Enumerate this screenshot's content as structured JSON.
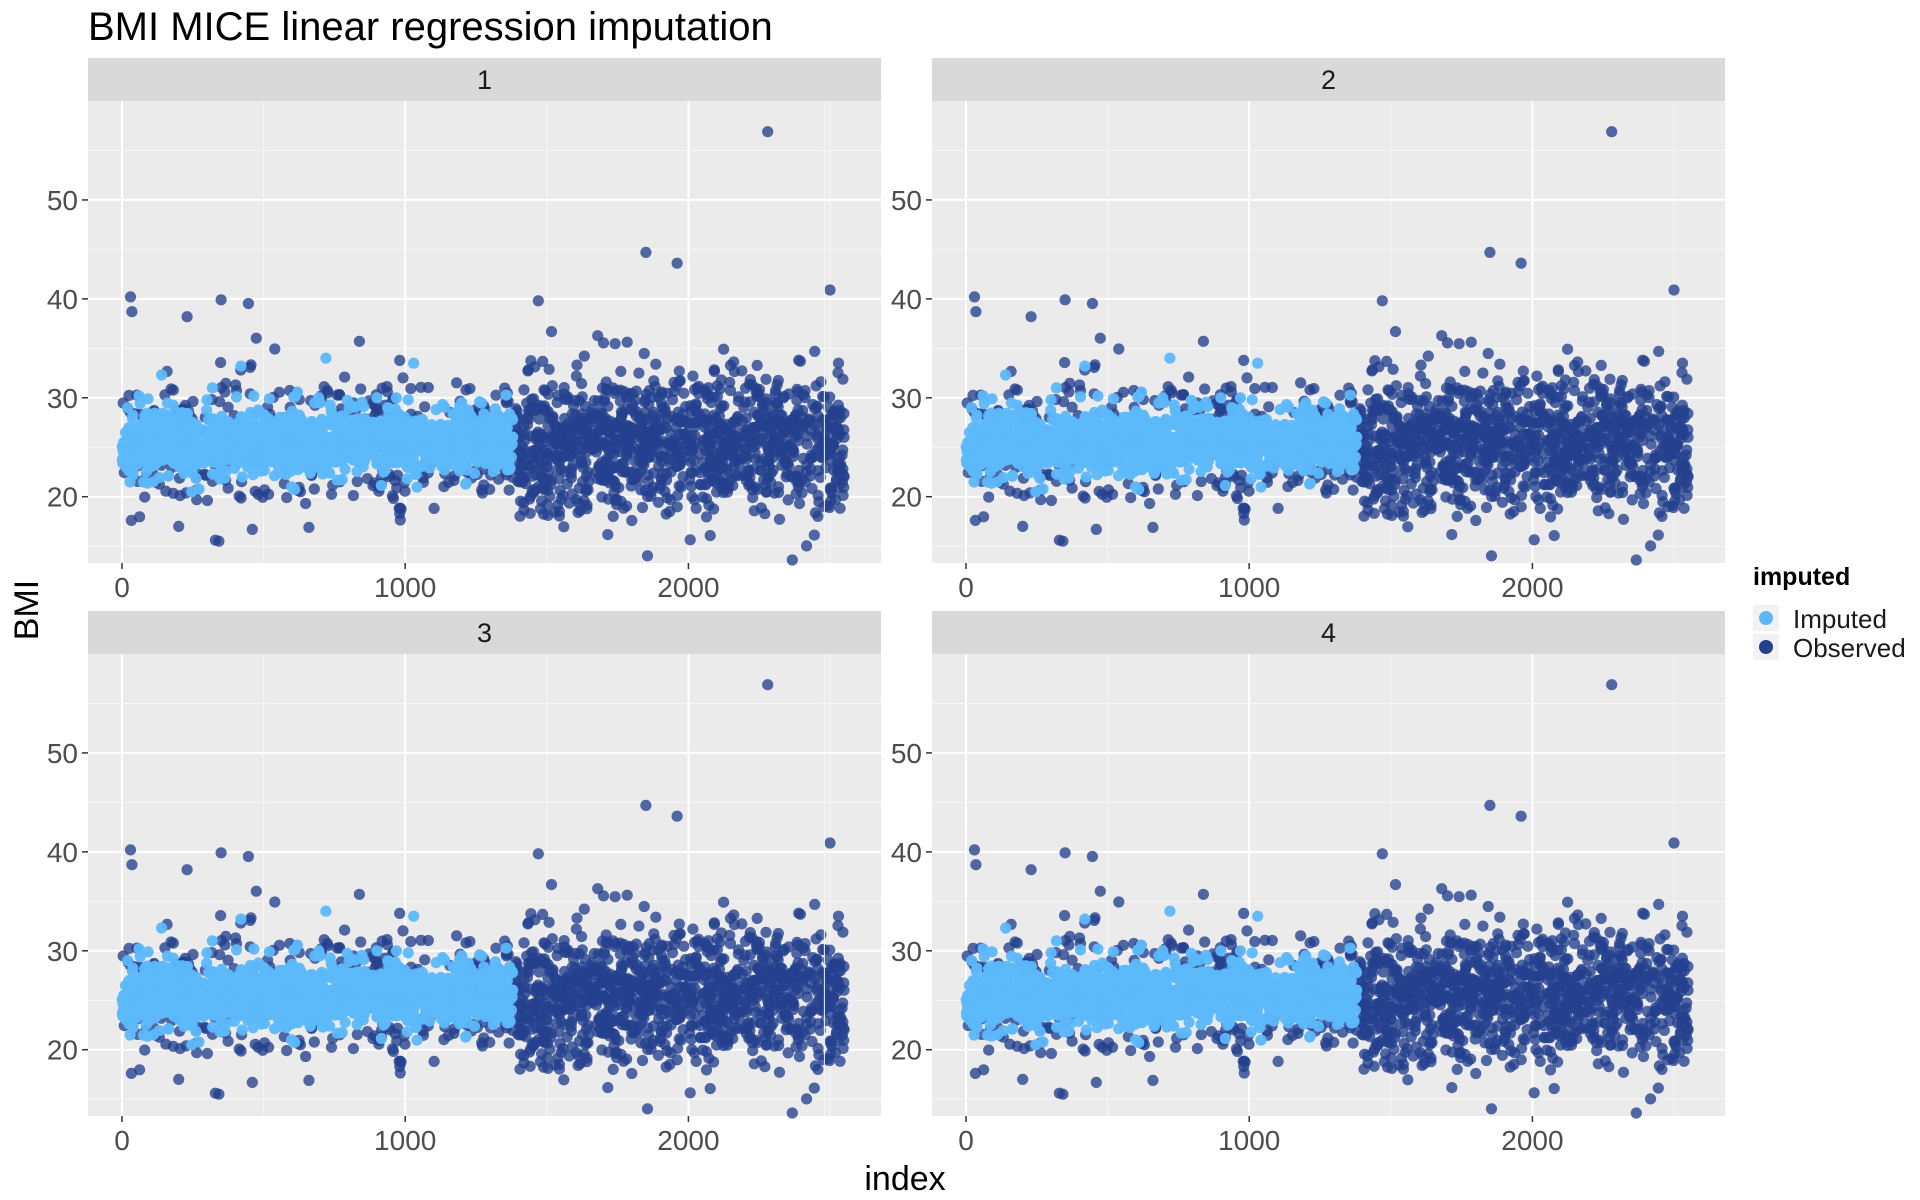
{
  "chart_data": {
    "type": "scatter",
    "title": "BMI MICE linear regression imputation",
    "xlabel": "index",
    "ylabel": "BMI",
    "xlim": [
      -120,
      2680
    ],
    "ylim": [
      13.3,
      60.0
    ],
    "x_ticks": [
      0,
      1000,
      2000
    ],
    "x_tick_labels": [
      "0",
      "1000",
      "2000"
    ],
    "y_ticks": [
      20,
      30,
      40,
      50
    ],
    "y_tick_labels": [
      "20",
      "30",
      "40",
      "50"
    ],
    "grid": true,
    "facet_layout": "2x2",
    "panels": [
      {
        "label": "1"
      },
      {
        "label": "2"
      },
      {
        "label": "3"
      },
      {
        "label": "4"
      }
    ],
    "legend": {
      "title": "imputed",
      "position": "right",
      "entries": [
        {
          "name": "Imputed",
          "color": "#5cb8fa"
        },
        {
          "name": "Observed",
          "color": "#24408e"
        }
      ]
    },
    "series": [
      {
        "name": "Imputed",
        "color": "#5cb8fa",
        "x_range": [
          0,
          1380
        ],
        "y_center": 25.6,
        "y_spread": 2.2,
        "highlighted_points": [
          {
            "x": 20,
            "y": 29.0
          },
          {
            "x": 60,
            "y": 30.2
          },
          {
            "x": 140,
            "y": 32.3
          },
          {
            "x": 300,
            "y": 29.8
          },
          {
            "x": 420,
            "y": 33.2
          },
          {
            "x": 520,
            "y": 29.9
          },
          {
            "x": 720,
            "y": 34.0
          },
          {
            "x": 900,
            "y": 30.0
          },
          {
            "x": 1030,
            "y": 33.5
          },
          {
            "x": 1200,
            "y": 29.5
          }
        ]
      },
      {
        "name": "Observed",
        "color": "#24408e",
        "x_range": [
          0,
          2550
        ],
        "highlighted_points": [
          {
            "x": 30,
            "y": 40.2
          },
          {
            "x": 35,
            "y": 38.7
          },
          {
            "x": 230,
            "y": 38.2
          },
          {
            "x": 350,
            "y": 39.9
          },
          {
            "x": 330,
            "y": 15.6
          },
          {
            "x": 460,
            "y": 16.7
          },
          {
            "x": 660,
            "y": 16.9
          },
          {
            "x": 1470,
            "y": 39.8
          },
          {
            "x": 1850,
            "y": 44.7
          },
          {
            "x": 1960,
            "y": 43.6
          },
          {
            "x": 2280,
            "y": 56.9
          },
          {
            "x": 2500,
            "y": 40.9
          },
          {
            "x": 2530,
            "y": 33.5
          },
          {
            "x": 1800,
            "y": 17.6
          }
        ]
      }
    ]
  }
}
